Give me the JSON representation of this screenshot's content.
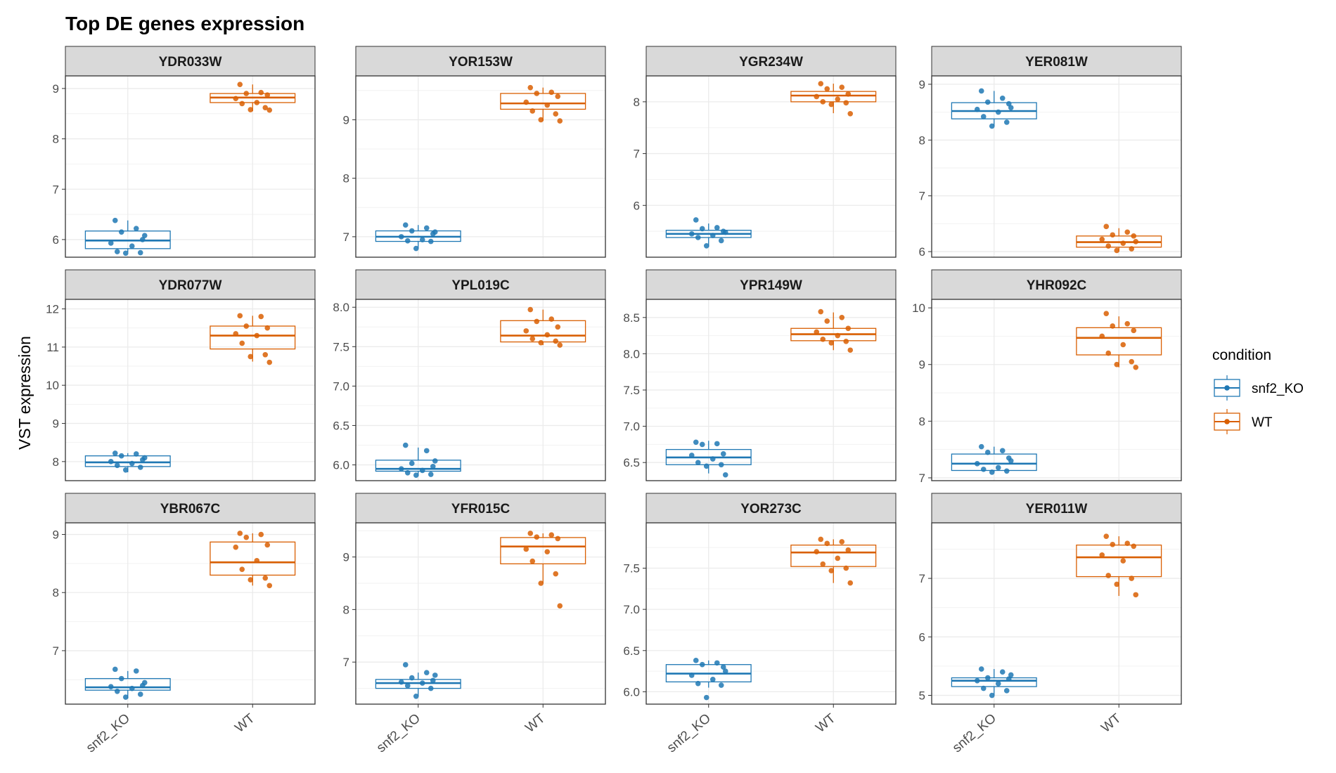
{
  "chart_data": {
    "type": "box",
    "title": "Top DE genes expression",
    "ylabel": "VST expression",
    "xlabel": "",
    "categories": [
      "snf2_KO",
      "WT"
    ],
    "legend": {
      "title": "condition",
      "position": "right",
      "entries": [
        "snf2_KO",
        "WT"
      ]
    },
    "colors": {
      "snf2_KO": "#1f78b4",
      "WT": "#d95f02"
    },
    "grid": true,
    "panels": [
      {
        "gene": "YDR033W",
        "ylim": [
          5.65,
          9.25
        ],
        "yticks": [
          "6",
          "7",
          "8",
          "9"
        ],
        "box": {
          "snf2_KO": [
            5.75,
            5.82,
            5.98,
            6.17,
            6.38
          ],
          "WT": [
            8.55,
            8.72,
            8.82,
            8.9,
            9.08
          ]
        },
        "points": {
          "snf2_KO": [
            6.38,
            6.22,
            6.15,
            6.0,
            5.93,
            5.87,
            5.76,
            5.74,
            5.73,
            6.08
          ],
          "WT": [
            9.08,
            8.92,
            8.9,
            8.87,
            8.8,
            8.72,
            8.7,
            8.62,
            8.58,
            8.57
          ]
        }
      },
      {
        "gene": "YOR153W",
        "ylim": [
          6.65,
          9.75
        ],
        "yticks": [
          "7",
          "8",
          "9"
        ],
        "box": {
          "snf2_KO": [
            6.8,
            6.92,
            7.0,
            7.1,
            7.2
          ],
          "WT": [
            8.98,
            9.18,
            9.28,
            9.45,
            9.55
          ]
        },
        "points": {
          "snf2_KO": [
            7.2,
            7.15,
            7.1,
            7.05,
            7.0,
            6.95,
            6.93,
            6.92,
            6.8,
            7.08
          ],
          "WT": [
            9.55,
            9.47,
            9.45,
            9.4,
            9.3,
            9.25,
            9.15,
            9.1,
            9.0,
            8.98
          ]
        }
      },
      {
        "gene": "YGR234W",
        "ylim": [
          5.0,
          8.5
        ],
        "yticks": [
          "6",
          "7",
          "8"
        ],
        "box": {
          "snf2_KO": [
            5.2,
            5.38,
            5.45,
            5.52,
            5.65
          ],
          "WT": [
            7.78,
            8.0,
            8.12,
            8.2,
            8.35
          ]
        },
        "points": {
          "snf2_KO": [
            5.72,
            5.57,
            5.55,
            5.5,
            5.45,
            5.42,
            5.38,
            5.32,
            5.22,
            5.48
          ],
          "WT": [
            8.35,
            8.28,
            8.25,
            8.15,
            8.1,
            8.05,
            8.0,
            7.98,
            7.95,
            7.77
          ]
        }
      },
      {
        "gene": "YER081W",
        "ylim": [
          5.9,
          9.15
        ],
        "yticks": [
          "6",
          "7",
          "8",
          "9"
        ],
        "box": {
          "snf2_KO": [
            8.25,
            8.38,
            8.52,
            8.67,
            8.88
          ],
          "WT": [
            6.0,
            6.08,
            6.17,
            6.28,
            6.42
          ]
        },
        "points": {
          "snf2_KO": [
            8.88,
            8.75,
            8.68,
            8.65,
            8.55,
            8.5,
            8.42,
            8.32,
            8.25,
            8.58
          ],
          "WT": [
            6.45,
            6.35,
            6.3,
            6.28,
            6.22,
            6.15,
            6.1,
            6.05,
            6.02,
            6.18
          ]
        }
      },
      {
        "gene": "YDR077W",
        "ylim": [
          7.5,
          12.25
        ],
        "yticks": [
          "8",
          "9",
          "10",
          "11",
          "12"
        ],
        "box": {
          "snf2_KO": [
            7.72,
            7.87,
            7.98,
            8.15,
            8.22
          ],
          "WT": [
            10.62,
            10.95,
            11.3,
            11.55,
            11.82
          ]
        },
        "points": {
          "snf2_KO": [
            8.22,
            8.2,
            8.15,
            8.05,
            8.0,
            7.95,
            7.9,
            7.85,
            7.78,
            8.1
          ],
          "WT": [
            11.82,
            11.8,
            11.55,
            11.5,
            11.35,
            11.3,
            11.1,
            10.8,
            10.75,
            10.6
          ]
        }
      },
      {
        "gene": "YPL019C",
        "ylim": [
          5.8,
          8.1
        ],
        "yticks": [
          "6.0",
          "6.5",
          "7.0",
          "7.5",
          "8.0"
        ],
        "box": {
          "snf2_KO": [
            5.86,
            5.92,
            5.95,
            6.06,
            6.22
          ],
          "WT": [
            7.52,
            7.56,
            7.64,
            7.83,
            7.97
          ]
        },
        "points": {
          "snf2_KO": [
            6.25,
            6.18,
            6.02,
            5.98,
            5.95,
            5.93,
            5.9,
            5.88,
            5.87,
            6.05
          ],
          "WT": [
            7.97,
            7.85,
            7.82,
            7.75,
            7.7,
            7.65,
            7.6,
            7.57,
            7.55,
            7.52
          ]
        }
      },
      {
        "gene": "YPR149W",
        "ylim": [
          6.25,
          8.75
        ],
        "yticks": [
          "6.5",
          "7.0",
          "7.5",
          "8.0",
          "8.5"
        ],
        "box": {
          "snf2_KO": [
            6.35,
            6.47,
            6.57,
            6.68,
            6.8
          ],
          "WT": [
            8.05,
            8.18,
            8.27,
            8.35,
            8.57
          ]
        },
        "points": {
          "snf2_KO": [
            6.78,
            6.76,
            6.75,
            6.62,
            6.6,
            6.55,
            6.5,
            6.47,
            6.45,
            6.33
          ],
          "WT": [
            8.58,
            8.5,
            8.45,
            8.35,
            8.3,
            8.25,
            8.2,
            8.17,
            8.15,
            8.05
          ]
        }
      },
      {
        "gene": "YHR092C",
        "ylim": [
          6.95,
          10.15
        ],
        "yticks": [
          "7",
          "8",
          "9",
          "10"
        ],
        "box": {
          "snf2_KO": [
            7.1,
            7.13,
            7.25,
            7.42,
            7.55
          ],
          "WT": [
            8.95,
            9.17,
            9.47,
            9.65,
            9.85
          ]
        },
        "points": {
          "snf2_KO": [
            7.55,
            7.48,
            7.45,
            7.35,
            7.25,
            7.18,
            7.15,
            7.12,
            7.1,
            7.3
          ],
          "WT": [
            9.9,
            9.72,
            9.68,
            9.6,
            9.5,
            9.35,
            9.2,
            9.05,
            9.0,
            8.95
          ]
        }
      },
      {
        "gene": "YBR067C",
        "ylim": [
          6.08,
          9.2
        ],
        "yticks": [
          "7",
          "8",
          "9"
        ],
        "box": {
          "snf2_KO": [
            6.18,
            6.32,
            6.37,
            6.52,
            6.65
          ],
          "WT": [
            8.12,
            8.3,
            8.52,
            8.87,
            9.02
          ]
        },
        "points": {
          "snf2_KO": [
            6.68,
            6.65,
            6.52,
            6.4,
            6.38,
            6.35,
            6.3,
            6.25,
            6.2,
            6.45
          ],
          "WT": [
            9.02,
            9.0,
            8.95,
            8.82,
            8.78,
            8.55,
            8.4,
            8.25,
            8.22,
            8.12
          ]
        }
      },
      {
        "gene": "YFR015C",
        "ylim": [
          6.2,
          9.65
        ],
        "yticks": [
          "7",
          "8",
          "9"
        ],
        "box": {
          "snf2_KO": [
            6.35,
            6.5,
            6.6,
            6.67,
            6.8
          ],
          "WT": [
            8.5,
            8.87,
            9.2,
            9.37,
            9.45
          ]
        },
        "points": {
          "snf2_KO": [
            6.95,
            6.8,
            6.7,
            6.65,
            6.62,
            6.6,
            6.55,
            6.5,
            6.35,
            6.75
          ],
          "WT": [
            9.45,
            9.42,
            9.38,
            9.35,
            9.15,
            9.1,
            8.92,
            8.68,
            8.5,
            8.07
          ]
        }
      },
      {
        "gene": "YOR273C",
        "ylim": [
          5.85,
          8.05
        ],
        "yticks": [
          "6.0",
          "6.5",
          "7.0",
          "7.5"
        ],
        "box": {
          "snf2_KO": [
            6.05,
            6.12,
            6.22,
            6.33,
            6.38
          ],
          "WT": [
            7.32,
            7.52,
            7.69,
            7.78,
            7.85
          ]
        },
        "points": {
          "snf2_KO": [
            6.38,
            6.35,
            6.33,
            6.3,
            6.2,
            6.15,
            6.1,
            6.08,
            5.93,
            6.25
          ],
          "WT": [
            7.85,
            7.82,
            7.8,
            7.72,
            7.7,
            7.62,
            7.55,
            7.5,
            7.47,
            7.32
          ]
        }
      },
      {
        "gene": "YER011W",
        "ylim": [
          4.85,
          7.95
        ],
        "yticks": [
          "5",
          "6",
          "7"
        ],
        "box": {
          "snf2_KO": [
            5.0,
            5.15,
            5.25,
            5.3,
            5.45
          ],
          "WT": [
            6.7,
            7.03,
            7.36,
            7.57,
            7.72
          ]
        },
        "points": {
          "snf2_KO": [
            5.45,
            5.4,
            5.3,
            5.28,
            5.25,
            5.2,
            5.12,
            5.08,
            5.0,
            5.35
          ],
          "WT": [
            7.72,
            7.6,
            7.58,
            7.55,
            7.4,
            7.3,
            7.05,
            7.0,
            6.9,
            6.72
          ]
        }
      }
    ]
  }
}
